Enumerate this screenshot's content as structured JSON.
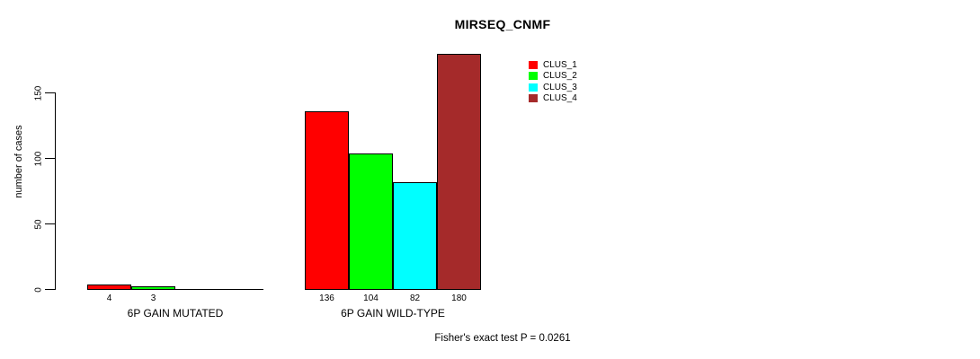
{
  "chart_data": {
    "type": "bar",
    "title": "MIRSEQ_CNMF",
    "ylabel": "number of cases",
    "xlabel": "",
    "yticks": [
      0,
      50,
      100,
      150
    ],
    "ylim": [
      0,
      183
    ],
    "grid": false,
    "legend_position": "top-right-inside",
    "series_names": [
      "CLUS_1",
      "CLUS_2",
      "CLUS_3",
      "CLUS_4"
    ],
    "series_colors": [
      "#ff0000",
      "#00ff00",
      "#00ffff",
      "#a52a2a"
    ],
    "groups": [
      {
        "label": "6P GAIN MUTATED",
        "values": [
          4,
          3,
          0,
          0
        ],
        "bar_labels": [
          "4",
          "3",
          "",
          ""
        ]
      },
      {
        "label": "6P GAIN WILD-TYPE",
        "values": [
          136,
          104,
          82,
          180
        ],
        "bar_labels": [
          "136",
          "104",
          "82",
          "180"
        ]
      }
    ],
    "annotation": "Fisher's exact test P = 0.0261"
  },
  "legend": {
    "items": [
      {
        "label": "CLUS_1",
        "color": "#ff0000"
      },
      {
        "label": "CLUS_2",
        "color": "#00ff00"
      },
      {
        "label": "CLUS_3",
        "color": "#00ffff"
      },
      {
        "label": "CLUS_4",
        "color": "#a52a2a"
      }
    ]
  },
  "colors": {
    "axis": "#000000",
    "background": "#ffffff",
    "text": "#000000"
  }
}
